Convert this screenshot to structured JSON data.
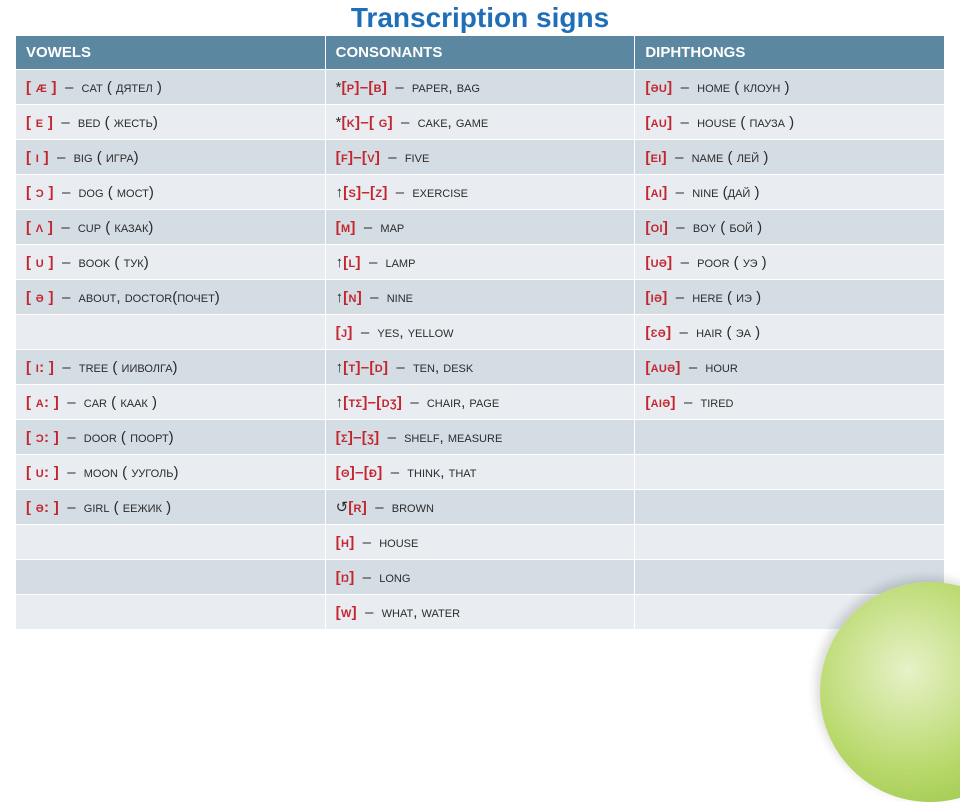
{
  "title": "Transcription signs",
  "headers": [
    "vowels",
    "consonants",
    "diphthongs"
  ],
  "colors": {
    "heading": "#1f6fb8",
    "header_bg": "#5b87a0",
    "row_odd": "#d4dde4",
    "row_even": "#e9edf2",
    "ipa": "#c3262f"
  },
  "rows": [
    {
      "v_ipa": "[ æ ]",
      "v_word": "cat ( дятел )",
      "c_prefix": "*",
      "c_ipa": "[p]–[b]",
      "c_word": "paper, bag",
      "d_ipa": "[əu]",
      "d_word": "home ( клоун )"
    },
    {
      "v_ipa": "[ e ]",
      "v_word": "bed ( жесть)",
      "c_prefix": "*",
      "c_ipa": "[k]–[ g]",
      "c_word": "cake, game",
      "d_ipa": "[au]",
      "d_word": "house ( пауза )"
    },
    {
      "v_ipa": "[ i ]",
      "v_word": "big ( игра)",
      "c_prefix": "",
      "c_ipa": "[f]–[v]",
      "c_word": "five",
      "d_ipa": "[ei]",
      "d_word": "name ( лей )"
    },
    {
      "v_ipa": "[ ɔ ]",
      "v_word": "dog ( мост)",
      "c_prefix": "↑",
      "c_ipa": "[s]–[z]",
      "c_word": "exercise",
      "d_ipa": "[ai]",
      "d_word": "nine (дай )"
    },
    {
      "v_ipa": "[ ʌ ]",
      "v_word": "cup ( казак)",
      "c_prefix": "",
      "c_ipa": "[m]",
      "c_word": "map",
      "d_ipa": "[oi]",
      "d_word": "boy ( бой )"
    },
    {
      "v_ipa": "[ u ]",
      "v_word": "book ( тук)",
      "c_prefix": "↑",
      "c_ipa": "[l]",
      "c_word": "lamp",
      "d_ipa": "[uə]",
      "d_word": "poor ( уэ )"
    },
    {
      "v_ipa": "[ ə ]",
      "v_word": "about, doctor(почет)",
      "c_prefix": "↑",
      "c_ipa": "[n]",
      "c_word": "nine",
      "d_ipa": "[iə]",
      "d_word": "here ( иэ )"
    },
    {
      "v_ipa": "",
      "v_word": "",
      "c_prefix": "",
      "c_ipa": "[j]",
      "c_word": "yes, yellow",
      "d_ipa": "[ɛə]",
      "d_word": "hair ( эа )"
    },
    {
      "v_ipa": "[ i: ]",
      "v_word": "tree ( ииволга)",
      "c_prefix": "↑",
      "c_ipa": "[t]–[d]",
      "c_word": "ten, desk",
      "d_ipa": "[auə]",
      "d_word": "hour"
    },
    {
      "v_ipa": "[ a: ]",
      "v_word": "car ( каак )",
      "c_prefix": "↑",
      "c_ipa": "[tʃ]–[dʒ]",
      "c_word": "chair, page",
      "d_ipa": "[aiə]",
      "d_word": "tired"
    },
    {
      "v_ipa": "[ ɔ: ]",
      "v_word": "door ( поорт)",
      "c_prefix": "",
      "c_ipa": "[ʃ]–[ʒ]",
      "c_word": "shelf, measure",
      "d_ipa": "",
      "d_word": ""
    },
    {
      "v_ipa": "[ u: ]",
      "v_word": "moon ( ууголь)",
      "c_prefix": "",
      "c_ipa": "[θ]–[ð]",
      "c_word": "think, that",
      "d_ipa": "",
      "d_word": ""
    },
    {
      "v_ipa": "[ ə: ]",
      "v_word": "girl ( еежик )",
      "c_prefix": "↺",
      "c_ipa": "[r]",
      "c_word": "brown",
      "d_ipa": "",
      "d_word": ""
    },
    {
      "v_ipa": "",
      "v_word": "",
      "c_prefix": "",
      "c_ipa": "[h]",
      "c_word": "house",
      "d_ipa": "",
      "d_word": ""
    },
    {
      "v_ipa": "",
      "v_word": "",
      "c_prefix": "",
      "c_ipa": "[ŋ]",
      "c_word": "long",
      "d_ipa": "",
      "d_word": ""
    },
    {
      "v_ipa": "",
      "v_word": "",
      "c_prefix": "",
      "c_ipa": "[w]",
      "c_word": "what, water",
      "d_ipa": "",
      "d_word": ""
    }
  ]
}
